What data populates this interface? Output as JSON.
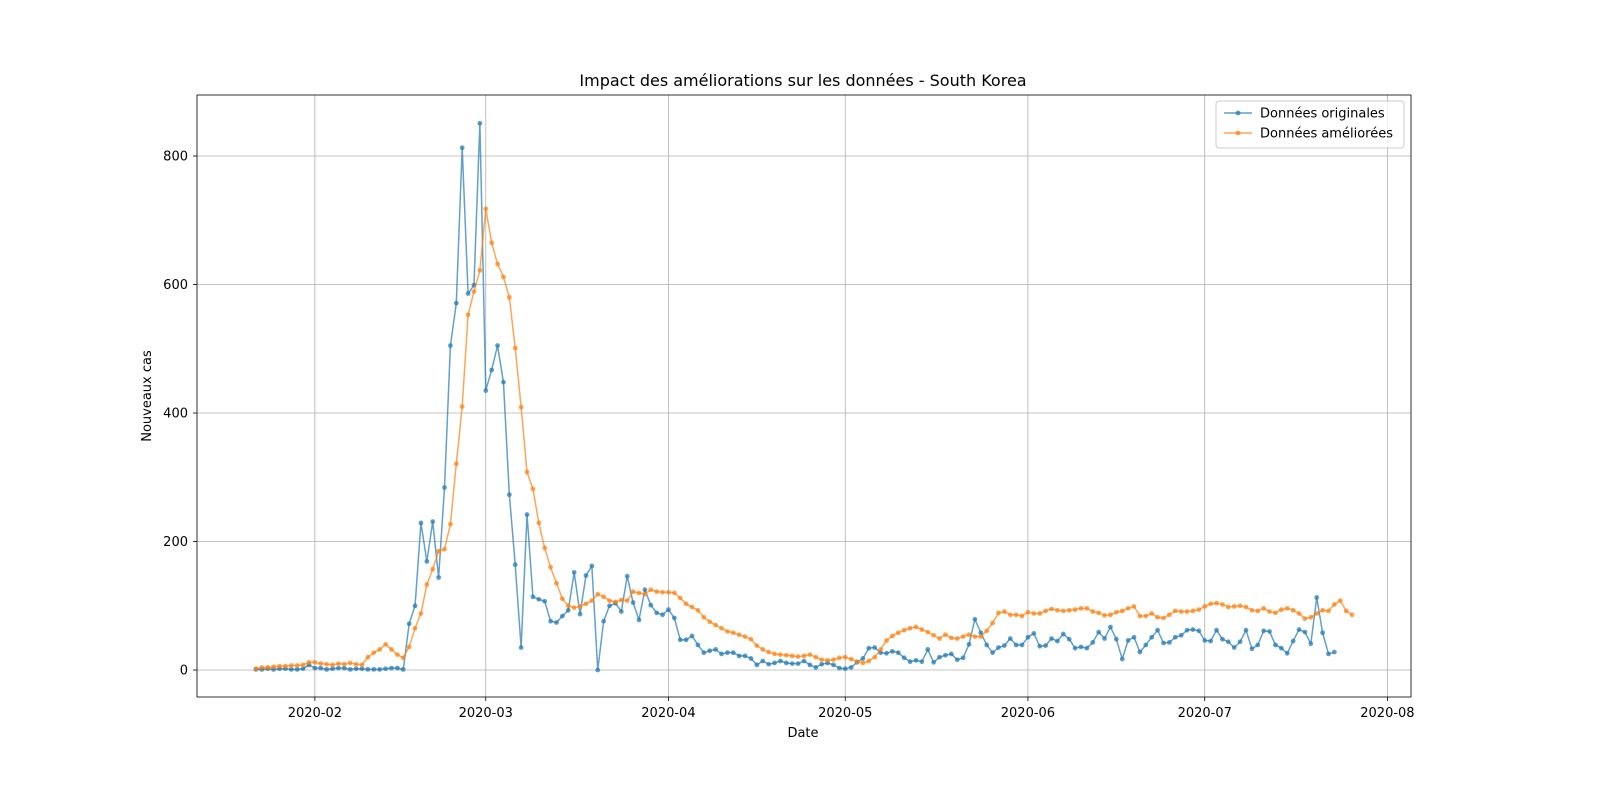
{
  "chart_data": {
    "type": "line",
    "title": "Impact des améliorations sur les données - South Korea",
    "xlabel": "Date",
    "ylabel": "Nouveaux cas",
    "x_axis_type": "date",
    "xlim": [
      "2020-01-12",
      "2020-08-05"
    ],
    "ylim": [
      -42,
      895
    ],
    "x_ticks": [
      "2020-02-01",
      "2020-03-01",
      "2020-04-01",
      "2020-05-01",
      "2020-06-01",
      "2020-07-01",
      "2020-08-01"
    ],
    "x_tick_labels": [
      "2020-02",
      "2020-03",
      "2020-04",
      "2020-05",
      "2020-06",
      "2020-07",
      "2020-08"
    ],
    "y_ticks": [
      0,
      200,
      400,
      600,
      800
    ],
    "y_tick_labels": [
      "0",
      "200",
      "400",
      "600",
      "800"
    ],
    "grid": true,
    "legend_position": "top-right",
    "x_start": "2020-01-22",
    "x_step_days": 1,
    "series": [
      {
        "name": "Données originales",
        "color": "#1f77b4",
        "values": [
          1,
          1,
          2,
          1,
          2,
          2,
          1,
          1,
          2,
          8,
          3,
          3,
          1,
          2,
          3,
          3,
          1,
          2,
          2,
          1,
          1,
          1,
          2,
          3,
          3,
          1,
          72,
          100,
          229,
          169,
          231,
          144,
          284,
          505,
          571,
          813,
          586,
          599,
          851,
          435,
          467,
          505,
          448,
          273,
          164,
          35,
          242,
          114,
          110,
          107,
          76,
          74,
          84,
          93,
          152,
          87,
          147,
          162,
          0,
          76,
          100,
          104,
          91,
          146,
          105,
          78,
          125,
          101,
          89,
          86,
          94,
          81,
          47,
          47,
          53,
          39,
          27,
          30,
          32,
          25,
          27,
          27,
          22,
          22,
          18,
          8,
          14,
          9,
          11,
          14,
          11,
          10,
          10,
          14,
          8,
          4,
          9,
          11,
          8,
          3,
          2,
          4,
          12,
          18,
          34,
          35,
          27,
          26,
          29,
          27,
          19,
          13,
          15,
          13,
          32,
          12,
          20,
          23,
          25,
          16,
          19,
          40,
          79,
          58,
          39,
          27,
          35,
          38,
          49,
          39,
          39,
          51,
          57,
          37,
          38,
          49,
          45,
          56,
          48,
          34,
          36,
          34,
          43,
          59,
          49,
          67,
          48,
          17,
          46,
          51,
          28,
          39,
          51,
          62,
          42,
          43,
          51,
          54,
          62,
          63,
          61,
          46,
          45,
          62,
          48,
          44,
          35,
          44,
          62,
          33,
          39,
          61,
          60,
          39,
          34,
          26,
          45,
          63,
          59,
          41,
          113,
          58,
          25,
          28
        ]
      },
      {
        "name": "Données améliorées",
        "color": "#ff7f0e",
        "values": [
          2,
          4,
          4,
          5,
          6,
          6,
          7,
          7,
          8,
          12,
          12,
          10,
          9,
          8,
          10,
          9,
          11,
          9,
          8,
          20,
          27,
          32,
          40,
          32,
          24,
          19,
          36,
          65,
          88,
          133,
          157,
          185,
          188,
          227,
          321,
          410,
          553,
          589,
          622,
          718,
          665,
          632,
          612,
          580,
          501,
          409,
          308,
          282,
          229,
          190,
          160,
          135,
          111,
          100,
          97,
          99,
          103,
          108,
          118,
          114,
          108,
          106,
          109,
          108,
          122,
          120,
          118,
          125,
          122,
          121,
          121,
          120,
          112,
          103,
          98,
          93,
          82,
          75,
          70,
          65,
          60,
          58,
          55,
          52,
          48,
          38,
          32,
          28,
          25,
          24,
          23,
          22,
          21,
          22,
          24,
          20,
          16,
          15,
          16,
          19,
          20,
          17,
          13,
          11,
          14,
          20,
          32,
          46,
          53,
          58,
          62,
          65,
          67,
          63,
          59,
          54,
          49,
          55,
          50,
          49,
          52,
          55,
          52,
          52,
          61,
          73,
          89,
          91,
          86,
          86,
          84,
          90,
          88,
          88,
          92,
          95,
          93,
          92,
          93,
          94,
          96,
          96,
          91,
          89,
          85,
          86,
          90,
          92,
          96,
          99,
          84,
          84,
          88,
          82,
          81,
          86,
          92,
          91,
          91,
          92,
          94,
          99,
          103,
          104,
          102,
          98,
          99,
          100,
          98,
          93,
          92,
          96,
          91,
          89,
          94,
          96,
          93,
          88,
          80,
          82,
          88,
          93,
          92,
          102,
          108,
          92,
          86
        ]
      }
    ]
  }
}
